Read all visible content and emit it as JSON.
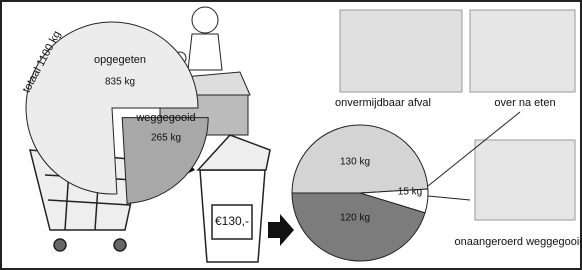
{
  "chart_data": [
    {
      "type": "pie",
      "title": "totaal 1100 kg",
      "categories": [
        "opgegeten",
        "weggegooid"
      ],
      "values": [
        835,
        265
      ],
      "value_labels": [
        "835 kg",
        "265 kg"
      ],
      "colors": [
        "#ececec",
        "#a8a8a8"
      ]
    },
    {
      "type": "pie",
      "categories": [
        "onvermijdbaar afval",
        "over na eten",
        "onaangeroerd weggegooid"
      ],
      "values": [
        130,
        15,
        120
      ],
      "value_labels": [
        "130 kg",
        "15 kg",
        "120 kg"
      ],
      "colors": [
        "#d4d4d4",
        "#ffffff",
        "#7c7c7c"
      ]
    }
  ],
  "bin_label": "€130,-"
}
